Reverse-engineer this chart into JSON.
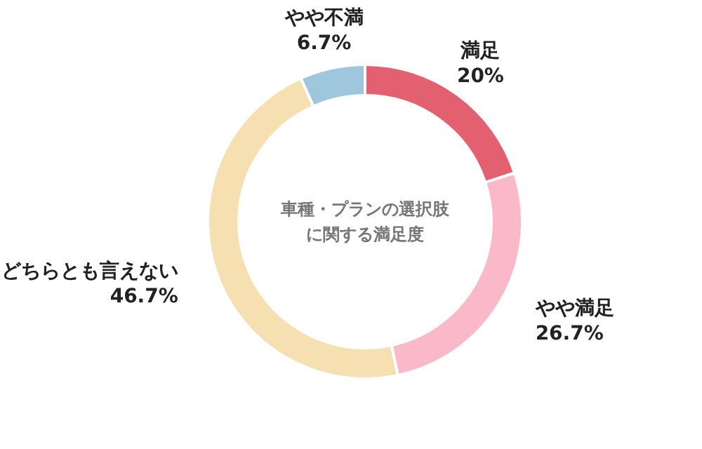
{
  "chart_data": {
    "type": "donut",
    "title": "車種・プランの選択肢に関する満足度",
    "categories": [
      "満足",
      "やや満足",
      "どちらとも言えない",
      "やや不満"
    ],
    "values": [
      20,
      26.7,
      46.7,
      6.7
    ],
    "value_labels": [
      "20%",
      "26.7%",
      "46.7%",
      "6.7%"
    ],
    "colors": [
      "#e2606f",
      "#f9b9c9",
      "#f6e0b2",
      "#9ec7de"
    ]
  }
}
